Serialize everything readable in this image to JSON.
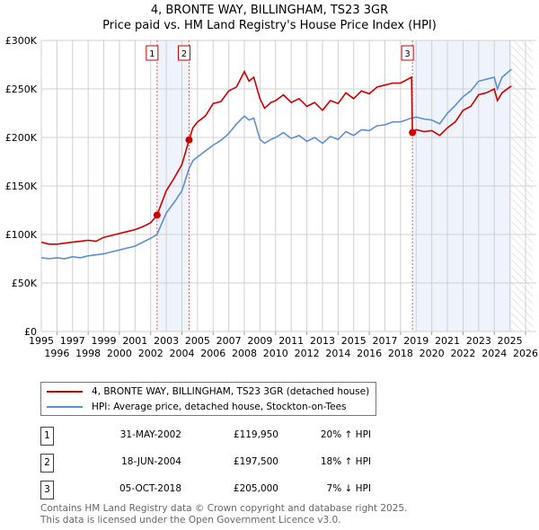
{
  "chart_data": {
    "type": "line",
    "title": "4, BRONTE WAY, BILLINGHAM, TS23 3GR",
    "subtitle": "Price paid vs. HM Land Registry's House Price Index (HPI)",
    "xlim": [
      1995,
      2026
    ],
    "ylim": [
      0,
      300000
    ],
    "x_ticks": [
      "1995",
      "1996",
      "1997",
      "1998",
      "1999",
      "2000",
      "2001",
      "2002",
      "2003",
      "2004",
      "2005",
      "2006",
      "2007",
      "2008",
      "2009",
      "2010",
      "2011",
      "2012",
      "2013",
      "2014",
      "2015",
      "2016",
      "2017",
      "2018",
      "2019",
      "2020",
      "2021",
      "2022",
      "2023",
      "2024",
      "2025",
      "2026"
    ],
    "y_ticks": [
      {
        "v": 0,
        "label": "£0"
      },
      {
        "v": 50000,
        "label": "£50K"
      },
      {
        "v": 100000,
        "label": "£100K"
      },
      {
        "v": 150000,
        "label": "£150K"
      },
      {
        "v": 200000,
        "label": "£200K"
      },
      {
        "v": 250000,
        "label": "£250K"
      },
      {
        "v": 300000,
        "label": "£300K"
      }
    ],
    "grid": true,
    "series": [
      {
        "name": "4, BRONTE WAY, BILLINGHAM, TS23 3GR (detached house)",
        "color": "#cc0000",
        "x": [
          1995,
          1995.5,
          1996,
          1996.5,
          1997,
          1997.5,
          1998,
          1998.5,
          1999,
          1999.5,
          2000,
          2000.5,
          2001,
          2001.5,
          2002,
          2002.41,
          2003,
          2003.5,
          2004,
          2004.46,
          2004.7,
          2005,
          2005.5,
          2006,
          2006.5,
          2007,
          2007.5,
          2008,
          2008.3,
          2008.6,
          2009,
          2009.3,
          2009.7,
          2010,
          2010.5,
          2011,
          2011.5,
          2012,
          2012.5,
          2013,
          2013.5,
          2014,
          2014.5,
          2015,
          2015.5,
          2016,
          2016.5,
          2017,
          2017.5,
          2018,
          2018.7,
          2018.76,
          2019,
          2019.5,
          2020,
          2020.5,
          2021,
          2021.5,
          2022,
          2022.5,
          2023,
          2023.5,
          2024,
          2024.2,
          2024.5,
          2025,
          2025.1
        ],
        "y": [
          92000,
          90000,
          90000,
          91000,
          92000,
          93000,
          94000,
          93000,
          97000,
          99000,
          101000,
          103000,
          105000,
          108000,
          112000,
          119950,
          145000,
          158000,
          172000,
          197500,
          210000,
          216000,
          222000,
          235000,
          237000,
          248000,
          252000,
          268000,
          258000,
          262000,
          240000,
          230000,
          236000,
          238000,
          244000,
          236000,
          240000,
          232000,
          236000,
          228000,
          238000,
          235000,
          246000,
          240000,
          248000,
          245000,
          252000,
          254000,
          256000,
          256000,
          262000,
          205000,
          208000,
          206000,
          207000,
          202000,
          210000,
          216000,
          228000,
          232000,
          244000,
          246000,
          250000,
          238000,
          246000,
          252000,
          253000
        ]
      },
      {
        "name": "HPI: Average price, detached house, Stockton-on-Tees",
        "color": "#5b8fd0",
        "x": [
          1995,
          1995.5,
          1996,
          1996.5,
          1997,
          1997.5,
          1998,
          1998.5,
          1999,
          1999.5,
          2000,
          2000.5,
          2001,
          2001.5,
          2002,
          2002.41,
          2003,
          2003.5,
          2004,
          2004.46,
          2004.7,
          2005,
          2005.5,
          2006,
          2006.5,
          2007,
          2007.5,
          2008,
          2008.3,
          2008.6,
          2009,
          2009.3,
          2009.7,
          2010,
          2010.5,
          2011,
          2011.5,
          2012,
          2012.5,
          2013,
          2013.5,
          2014,
          2014.5,
          2015,
          2015.5,
          2016,
          2016.5,
          2017,
          2017.5,
          2018,
          2018.7,
          2018.76,
          2019,
          2019.5,
          2020,
          2020.5,
          2021,
          2021.5,
          2022,
          2022.5,
          2023,
          2023.5,
          2024,
          2024.2,
          2024.5,
          2025,
          2025.1
        ],
        "y": [
          76000,
          75000,
          76000,
          75000,
          77000,
          76000,
          78000,
          79000,
          80000,
          82000,
          84000,
          86000,
          88000,
          92000,
          96000,
          100000,
          122000,
          133000,
          145000,
          168000,
          176000,
          180000,
          186000,
          192000,
          197000,
          204000,
          214000,
          222000,
          218000,
          220000,
          198000,
          194000,
          198000,
          200000,
          205000,
          199000,
          202000,
          196000,
          200000,
          194000,
          201000,
          198000,
          206000,
          202000,
          208000,
          207000,
          212000,
          213000,
          216000,
          216000,
          220000,
          220000,
          221000,
          219000,
          218000,
          214000,
          225000,
          233000,
          242000,
          248000,
          258000,
          260000,
          262000,
          250000,
          262000,
          269000,
          270000
        ]
      }
    ],
    "sales": [
      {
        "n": "1",
        "x": 2002.41,
        "y": 119950
      },
      {
        "n": "2",
        "x": 2004.46,
        "y": 197500
      },
      {
        "n": "3",
        "x": 2018.76,
        "y": 205000
      }
    ],
    "shaded": [
      [
        2002.41,
        2004.46
      ],
      [
        2018.76,
        2025.1
      ]
    ],
    "hatch_from": 2025.1
  },
  "legend": [
    "4, BRONTE WAY, BILLINGHAM, TS23 3GR (detached house)",
    "HPI: Average price, detached house, Stockton-on-Tees"
  ],
  "table": [
    {
      "n": "1",
      "date": "31-MAY-2002",
      "price": "£119,950",
      "hpi": "20% ↑ HPI"
    },
    {
      "n": "2",
      "date": "18-JUN-2004",
      "price": "£197,500",
      "hpi": "18% ↑ HPI"
    },
    {
      "n": "3",
      "date": "05-OCT-2018",
      "price": "£205,000",
      "hpi": "7% ↓ HPI"
    }
  ],
  "footer": [
    "Contains HM Land Registry data © Crown copyright and database right 2025.",
    "This data is licensed under the Open Government Licence v3.0."
  ]
}
